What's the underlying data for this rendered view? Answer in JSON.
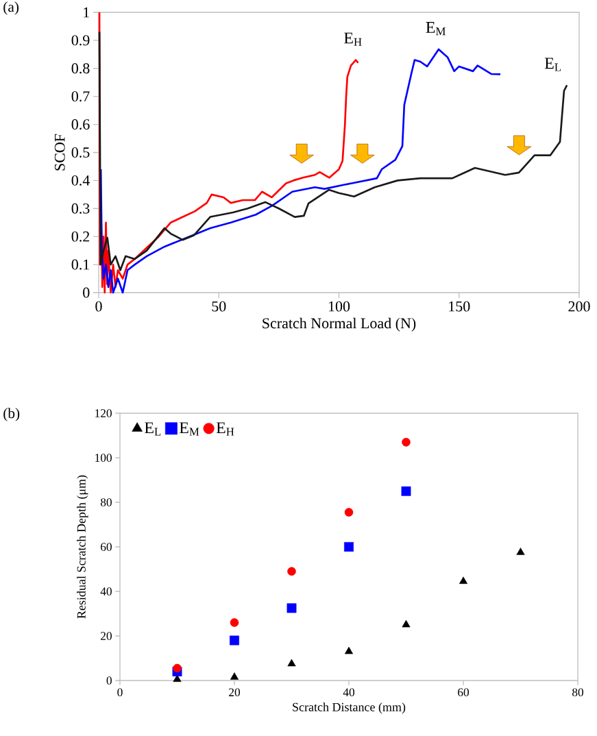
{
  "chart_data": [
    {
      "type": "line",
      "xlabel": "Scratch Normal Load (N)",
      "ylabel": "SCOF",
      "annotations": [
        "(a)"
      ],
      "xlim": [
        0,
        200
      ],
      "xticks": [
        0,
        50,
        100,
        150,
        200
      ],
      "ylim": [
        0,
        1
      ],
      "yticks": [
        0,
        0.1,
        0.2,
        0.3,
        0.4,
        0.5,
        0.6,
        0.7,
        0.8,
        0.9,
        1
      ],
      "series": [
        {
          "name": "E$_{H}$",
          "color": "#ff0000",
          "x": [
            0.3,
            0.5,
            1,
            1.5,
            2,
            2.5,
            3,
            3.5,
            4,
            5,
            6,
            7,
            8,
            10,
            12,
            15,
            20,
            25,
            30,
            35,
            40,
            45,
            47,
            52,
            55,
            60,
            65,
            68,
            72,
            78,
            81,
            85,
            90,
            92,
            96,
            100,
            101.5,
            102.5,
            103,
            103.5,
            105,
            107,
            108
          ],
          "values": [
            1.0,
            0.1,
            0.28,
            0.02,
            0.2,
            0.0,
            0.25,
            0.03,
            0.15,
            0.0,
            0.1,
            0.02,
            0.08,
            0.05,
            0.1,
            0.12,
            0.16,
            0.2,
            0.25,
            0.27,
            0.29,
            0.32,
            0.35,
            0.34,
            0.32,
            0.33,
            0.33,
            0.36,
            0.34,
            0.39,
            0.4,
            0.41,
            0.42,
            0.43,
            0.41,
            0.44,
            0.47,
            0.6,
            0.7,
            0.77,
            0.81,
            0.83,
            0.82
          ]
        },
        {
          "name": "E$_{M}$",
          "color": "#0000ff",
          "x": [
            0.9,
            1.3,
            2,
            3,
            4,
            5,
            6,
            8,
            10,
            12,
            15,
            20,
            27.4,
            35,
            46.4,
            55,
            65.4,
            72.2,
            80.6,
            90,
            94,
            101.6,
            105.3,
            115.8,
            117.8,
            123.5,
            126.4,
            127.2,
            130.1,
            131.5,
            133.9,
            136.7,
            141.5,
            145.2,
            148,
            150,
            155.8,
            157.7,
            163.4,
            167.2
          ],
          "values": [
            0.44,
            0.15,
            0.05,
            0.1,
            0.02,
            0.08,
            0.0,
            0.05,
            0.0,
            0.08,
            0.1,
            0.13,
            0.164,
            0.19,
            0.23,
            0.25,
            0.278,
            0.31,
            0.36,
            0.376,
            0.37,
            0.384,
            0.39,
            0.408,
            0.44,
            0.474,
            0.523,
            0.67,
            0.78,
            0.83,
            0.824,
            0.807,
            0.868,
            0.84,
            0.79,
            0.807,
            0.79,
            0.81,
            0.78,
            0.779
          ]
        },
        {
          "name": "E$_{L}$",
          "color": "#1a1a1a",
          "x": [
            0.3,
            0.8,
            2,
            3.6,
            5,
            7,
            9,
            11.2,
            15,
            20,
            27.4,
            30,
            35,
            39.7,
            46.4,
            55.9,
            62,
            69.3,
            75,
            81.6,
            85.4,
            87.3,
            95.9,
            100,
            106.3,
            114.9,
            124.4,
            133.9,
            147.2,
            156.6,
            169.2,
            174.9,
            181.4,
            188,
            192,
            192.9,
            193.7,
            194.9
          ],
          "values": [
            0.93,
            0.1,
            0.15,
            0.196,
            0.1,
            0.13,
            0.08,
            0.13,
            0.12,
            0.15,
            0.23,
            0.21,
            0.188,
            0.205,
            0.27,
            0.286,
            0.3,
            0.323,
            0.3,
            0.27,
            0.274,
            0.318,
            0.367,
            0.355,
            0.343,
            0.376,
            0.4,
            0.408,
            0.408,
            0.445,
            0.42,
            0.428,
            0.49,
            0.49,
            0.538,
            0.636,
            0.72,
            0.74
          ]
        }
      ]
    },
    {
      "type": "scatter",
      "xlabel": "Scratch Distance (mm)",
      "ylabel": "Residual Scratch Depth (μm)",
      "annotations": [
        "(b)"
      ],
      "legend": "top left",
      "xlim": [
        0,
        80
      ],
      "xticks": [
        0,
        20,
        40,
        60,
        80
      ],
      "ylim": [
        0,
        120
      ],
      "yticks": [
        0,
        20,
        40,
        60,
        80,
        100,
        120
      ],
      "series": [
        {
          "name": "E$_{L}$",
          "color": "#000000",
          "marker": "triangle",
          "x": [
            10,
            20,
            30,
            40,
            50,
            60,
            70
          ],
          "values": [
            0.5,
            1.5,
            7.5,
            13,
            25,
            44.5,
            57.5
          ]
        },
        {
          "name": "E$_{M}$",
          "color": "#0000ff",
          "marker": "square",
          "x": [
            10,
            20,
            30,
            40,
            50
          ],
          "values": [
            4,
            18,
            32.5,
            60,
            85
          ]
        },
        {
          "name": "E$_{H}$",
          "color": "#ff0000",
          "marker": "circle",
          "x": [
            10,
            20,
            30,
            40,
            50
          ],
          "values": [
            5.5,
            26,
            49,
            75.5,
            107
          ]
        }
      ]
    }
  ]
}
